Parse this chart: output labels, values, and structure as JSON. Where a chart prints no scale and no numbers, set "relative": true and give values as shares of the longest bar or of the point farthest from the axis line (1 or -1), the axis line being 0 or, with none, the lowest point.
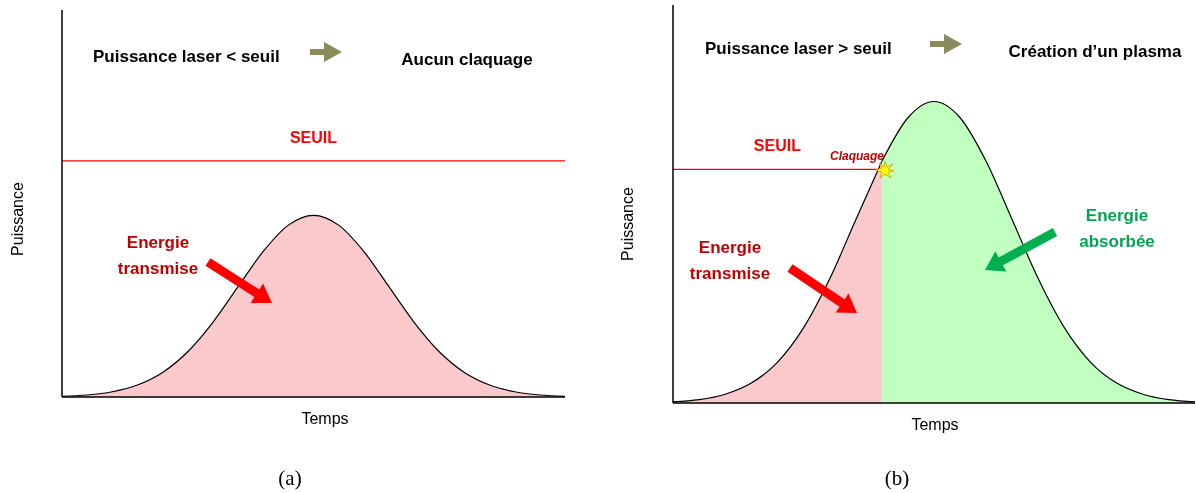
{
  "chart_data": [
    {
      "type": "area",
      "title": "Puissance laser < seuil",
      "xlabel": "Temps",
      "ylabel": "Puissance",
      "relative": true,
      "categories": [
        null,
        null,
        null,
        null,
        null,
        null,
        null,
        null,
        null,
        null,
        null,
        null,
        null,
        null,
        null,
        null,
        null,
        null,
        null,
        null,
        null
      ],
      "series": [
        {
          "color": "#f9c9cb",
          "values": [
            0.004,
            0.011,
            0.029,
            0.066,
            0.135,
            0.249,
            0.411,
            0.607,
            0.801,
            0.946,
            1,
            0.946,
            0.801,
            0.607,
            0.411,
            0.249,
            0.135,
            0.066,
            0.029,
            0.011,
            0.004
          ]
        }
      ],
      "ref_lines": [
        {
          "axis": "y",
          "value": 1.3,
          "label": "SEUIL",
          "color": "#ff0000"
        }
      ],
      "annotations": [
        "Aucun claquage",
        "Energie transmise",
        "(a)"
      ]
    },
    {
      "type": "area",
      "title": "Puissance laser > seuil",
      "xlabel": "Temps",
      "ylabel": "Puissance",
      "relative": true,
      "categories": [
        null,
        null,
        null,
        null,
        null,
        null,
        null,
        null,
        null,
        null,
        null,
        null,
        null,
        null,
        null,
        null,
        null,
        null,
        null,
        null,
        null
      ],
      "series": [
        {
          "color": "#f9c9cb",
          "values": [
            0.004,
            0.011,
            0.029,
            0.066,
            0.135,
            0.249,
            0.411,
            0.607,
            0.801,
            null,
            null,
            null,
            null,
            null,
            null,
            null,
            null,
            null,
            null,
            null,
            null
          ]
        },
        {
          "color": "#c1ffc1",
          "values": [
            null,
            null,
            null,
            null,
            null,
            null,
            null,
            null,
            0.801,
            0.946,
            1,
            0.946,
            0.801,
            0.607,
            0.411,
            0.249,
            0.135,
            0.066,
            0.029,
            0.011,
            0.004
          ]
        }
      ],
      "ref_lines": [
        {
          "axis": "y",
          "value": 0.775,
          "label": "SEUIL",
          "color": "#ff0000"
        }
      ],
      "annotations": [
        "Création d’un plasma",
        "Claquage",
        "Energie transmise",
        "Energie absorbée",
        "(b)"
      ]
    }
  ]
}
